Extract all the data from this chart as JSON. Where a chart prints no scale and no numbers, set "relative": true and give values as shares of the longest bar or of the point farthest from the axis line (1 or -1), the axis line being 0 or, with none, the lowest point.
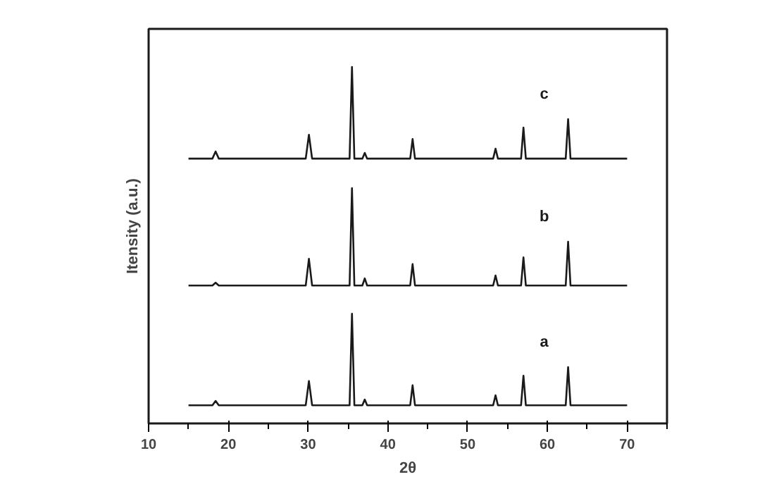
{
  "chart_data": {
    "type": "line",
    "relative": true,
    "xlabel": "2θ",
    "ylabel": "Itensity (a.u.)",
    "xlim": [
      10,
      75
    ],
    "xticks": [
      10,
      {
        "value": 15,
        "label": null
      },
      20,
      {
        "value": 25,
        "label": null
      },
      30,
      {
        "value": 35,
        "label": null
      },
      40,
      {
        "value": 45,
        "label": null
      },
      50,
      {
        "value": 55,
        "label": null
      },
      60,
      {
        "value": 65,
        "label": null
      },
      70,
      {
        "value": 75,
        "label": null
      }
    ],
    "x": [
      15,
      18.0,
      18.4,
      18.8,
      29.7,
      30.1,
      30.5,
      35.2,
      35.5,
      35.8,
      36.8,
      37.1,
      37.4,
      42.8,
      43.1,
      43.4,
      53.2,
      53.5,
      53.8,
      56.7,
      57.0,
      57.3,
      62.3,
      62.6,
      62.9,
      70
    ],
    "series": [
      {
        "name": "a",
        "color": "#1a1a1a",
        "values": [
          0.051,
          0.051,
          0.063,
          0.051,
          0.051,
          0.119,
          0.051,
          0.051,
          0.308,
          0.051,
          0.051,
          0.067,
          0.051,
          0.051,
          0.107,
          0.051,
          0.051,
          0.079,
          0.051,
          0.051,
          0.134,
          0.051,
          0.051,
          0.158,
          0.051,
          0.051
        ]
      },
      {
        "name": "b",
        "color": "#1a1a1a",
        "values": [
          0.387,
          0.387,
          0.395,
          0.387,
          0.387,
          0.462,
          0.387,
          0.387,
          0.66,
          0.387,
          0.387,
          0.407,
          0.387,
          0.387,
          0.447,
          0.387,
          0.387,
          0.415,
          0.387,
          0.387,
          0.466,
          0.387,
          0.387,
          0.51,
          0.387,
          0.387
        ]
      },
      {
        "name": "c",
        "color": "#1a1a1a",
        "values": [
          0.743,
          0.743,
          0.763,
          0.743,
          0.743,
          0.81,
          0.743,
          0.743,
          1.0,
          0.743,
          0.743,
          0.759,
          0.743,
          0.743,
          0.798,
          0.743,
          0.743,
          0.771,
          0.743,
          0.743,
          0.83,
          0.743,
          0.743,
          0.854,
          0.743,
          0.743
        ]
      }
    ],
    "grid": false
  }
}
